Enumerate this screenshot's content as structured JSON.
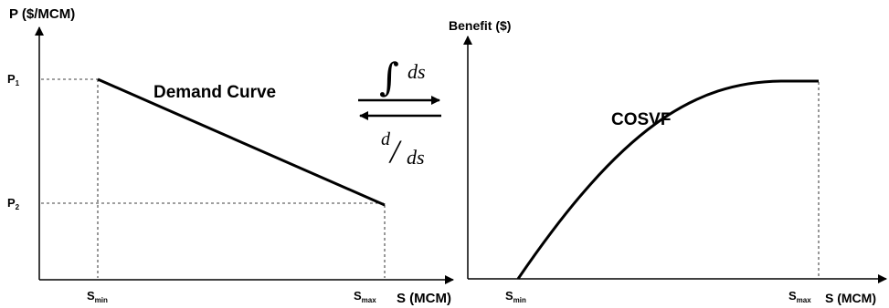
{
  "left_panel": {
    "y_axis_label": "P ($/MCM)",
    "x_axis_label": "S (MCM)",
    "p1": {
      "main": "P",
      "sub": "1"
    },
    "p2": {
      "main": "P",
      "sub": "2"
    },
    "s_min": {
      "main": "S",
      "sub": "min"
    },
    "s_max": {
      "main": "S",
      "sub": "max"
    },
    "curve_label": "Demand Curve"
  },
  "right_panel": {
    "y_axis_label": "Benefit ($)",
    "x_axis_label": "S (MCM)",
    "s_min": {
      "main": "S",
      "sub": "min"
    },
    "s_max": {
      "main": "S",
      "sub": "max"
    },
    "curve_label": "COSVF"
  },
  "operators": {
    "integral_symbol": "∫",
    "integral_var": "ds",
    "derivative_num": "d",
    "derivative_slash": "/",
    "derivative_den": "ds"
  }
}
